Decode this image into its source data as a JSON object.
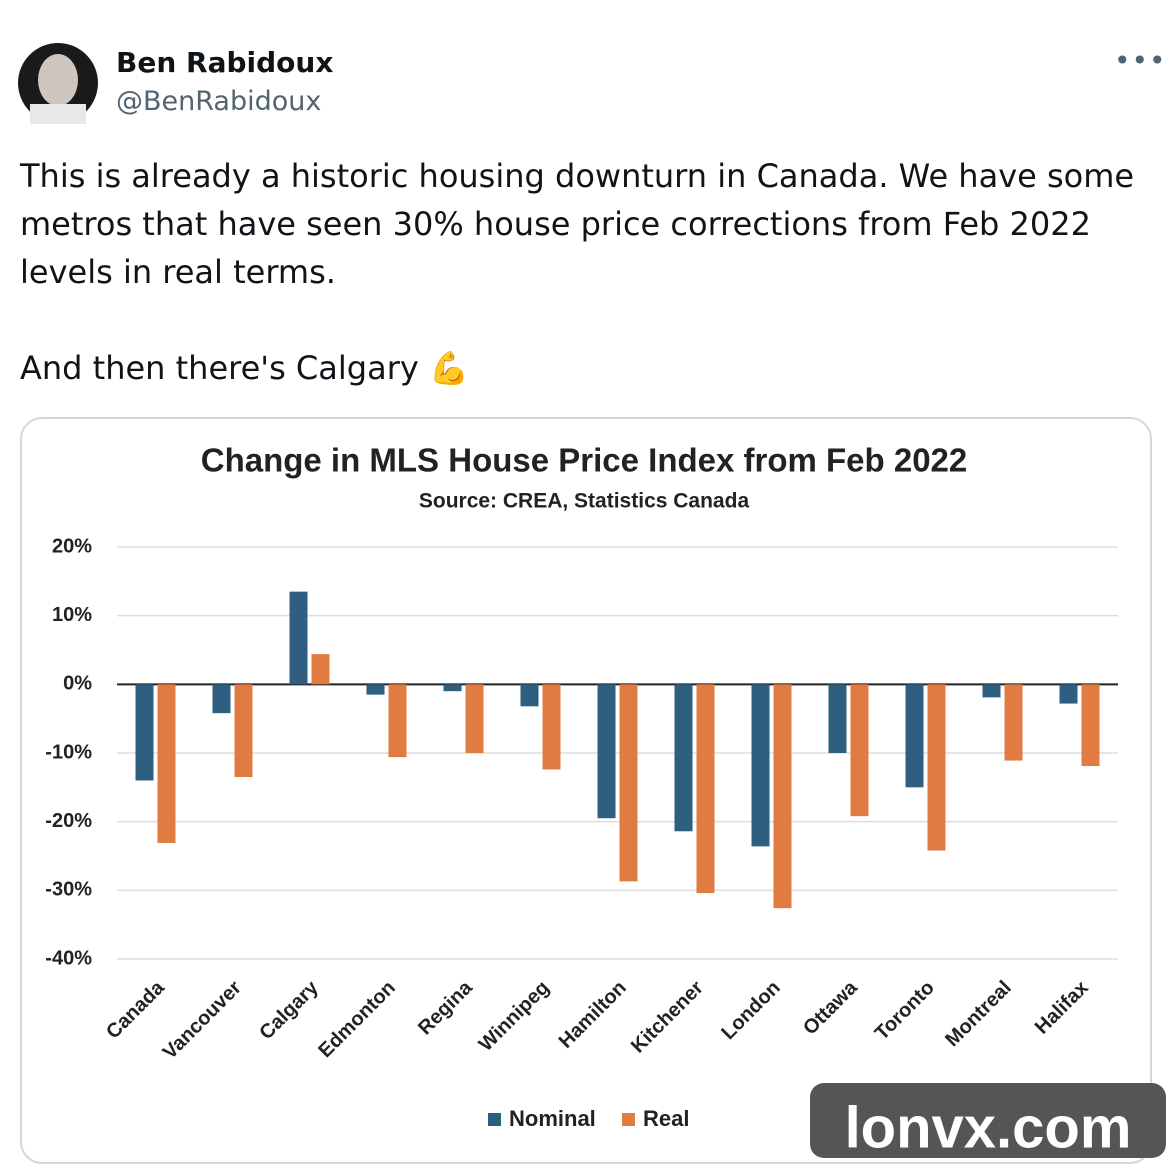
{
  "tweet": {
    "author": "Ben Rabidoux",
    "handle": "@BenRabidoux",
    "paragraphs": [
      "This is already a historic housing downturn in Canada.  We have some metros that have seen 30% house price corrections from Feb 2022 levels in real terms.",
      "And then there's Calgary 💪"
    ],
    "watermark": "lonvx.com"
  },
  "chart_data": {
    "type": "bar",
    "title": "Change in MLS House Price Index from Feb 2022",
    "subtitle": "Source: CREA, Statistics Canada",
    "categories": [
      "Canada",
      "Vancouver",
      "Calgary",
      "Edmonton",
      "Regina",
      "Winnipeg",
      "Hamilton",
      "Kitchener",
      "London",
      "Ottawa",
      "Toronto",
      "Montreal",
      "Halifax"
    ],
    "series": [
      {
        "name": "Nominal",
        "color": "#2e5f80",
        "values": [
          -14,
          -4.2,
          13.5,
          -1.5,
          -1,
          -3.2,
          -19.5,
          -21.4,
          -23.6,
          -10,
          -15,
          -1.9,
          -2.8
        ]
      },
      {
        "name": "Real",
        "color": "#e07b42",
        "values": [
          -23.1,
          -13.5,
          4.4,
          -10.6,
          -10,
          -12.4,
          -28.7,
          -30.4,
          -32.6,
          -19.2,
          -24.2,
          -11.1,
          -11.9
        ]
      }
    ],
    "ylim": [
      -40,
      20
    ],
    "yticks": [
      {
        "value": -40,
        "label": "-40%"
      },
      {
        "value": -30,
        "label": "-30%"
      },
      {
        "value": -20,
        "label": "-20%"
      },
      {
        "value": -10,
        "label": "-10%"
      },
      {
        "value": 0,
        "label": "0%"
      },
      {
        "value": 10,
        "label": "10%"
      },
      {
        "value": 20,
        "label": "20%"
      }
    ],
    "grid": true,
    "legend": "bottom"
  }
}
